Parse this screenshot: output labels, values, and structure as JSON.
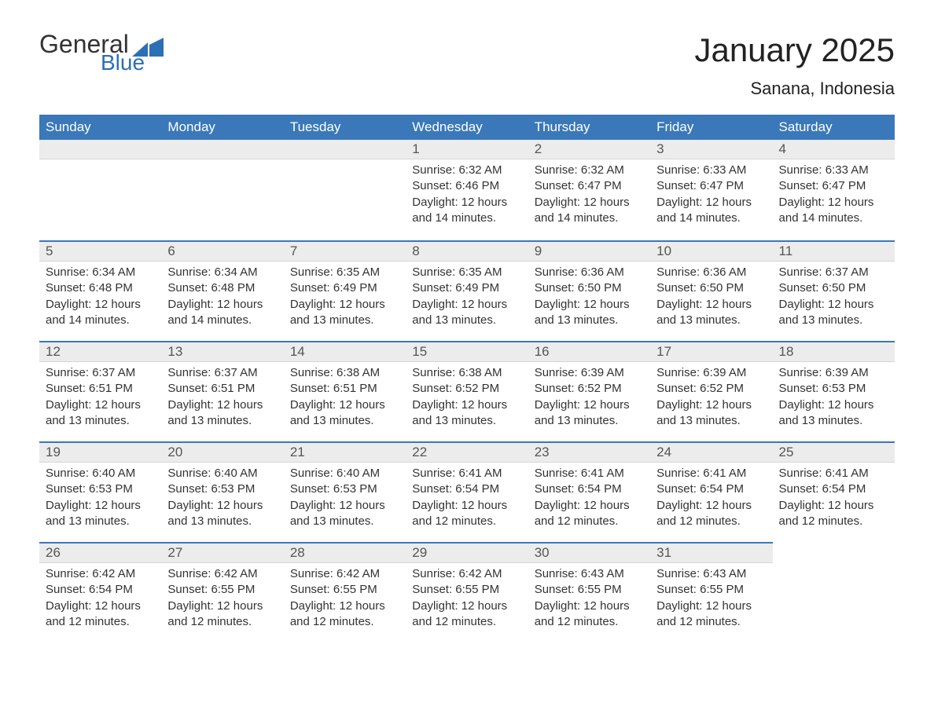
{
  "logo": {
    "word1": "General",
    "word2": "Blue",
    "word1_color": "#333333",
    "word2_color": "#2d6fb4",
    "icon_color": "#2d6fb4"
  },
  "title": "January 2025",
  "location": "Sanana, Indonesia",
  "colors": {
    "header_bg": "#3a78b9",
    "header_text": "#ffffff",
    "daynum_bg": "#ececec",
    "row_border": "#3a78b9",
    "body_text": "#333333",
    "background": "#ffffff"
  },
  "fonts": {
    "title_size_pt": 32,
    "location_size_pt": 16,
    "dayheader_size_pt": 13,
    "body_size_pt": 11
  },
  "calendar": {
    "type": "table",
    "day_headers": [
      "Sunday",
      "Monday",
      "Tuesday",
      "Wednesday",
      "Thursday",
      "Friday",
      "Saturday"
    ],
    "start_day_index": 3,
    "days": [
      {
        "n": 1,
        "sunrise": "6:32 AM",
        "sunset": "6:46 PM",
        "daylight": "12 hours and 14 minutes."
      },
      {
        "n": 2,
        "sunrise": "6:32 AM",
        "sunset": "6:47 PM",
        "daylight": "12 hours and 14 minutes."
      },
      {
        "n": 3,
        "sunrise": "6:33 AM",
        "sunset": "6:47 PM",
        "daylight": "12 hours and 14 minutes."
      },
      {
        "n": 4,
        "sunrise": "6:33 AM",
        "sunset": "6:47 PM",
        "daylight": "12 hours and 14 minutes."
      },
      {
        "n": 5,
        "sunrise": "6:34 AM",
        "sunset": "6:48 PM",
        "daylight": "12 hours and 14 minutes."
      },
      {
        "n": 6,
        "sunrise": "6:34 AM",
        "sunset": "6:48 PM",
        "daylight": "12 hours and 14 minutes."
      },
      {
        "n": 7,
        "sunrise": "6:35 AM",
        "sunset": "6:49 PM",
        "daylight": "12 hours and 13 minutes."
      },
      {
        "n": 8,
        "sunrise": "6:35 AM",
        "sunset": "6:49 PM",
        "daylight": "12 hours and 13 minutes."
      },
      {
        "n": 9,
        "sunrise": "6:36 AM",
        "sunset": "6:50 PM",
        "daylight": "12 hours and 13 minutes."
      },
      {
        "n": 10,
        "sunrise": "6:36 AM",
        "sunset": "6:50 PM",
        "daylight": "12 hours and 13 minutes."
      },
      {
        "n": 11,
        "sunrise": "6:37 AM",
        "sunset": "6:50 PM",
        "daylight": "12 hours and 13 minutes."
      },
      {
        "n": 12,
        "sunrise": "6:37 AM",
        "sunset": "6:51 PM",
        "daylight": "12 hours and 13 minutes."
      },
      {
        "n": 13,
        "sunrise": "6:37 AM",
        "sunset": "6:51 PM",
        "daylight": "12 hours and 13 minutes."
      },
      {
        "n": 14,
        "sunrise": "6:38 AM",
        "sunset": "6:51 PM",
        "daylight": "12 hours and 13 minutes."
      },
      {
        "n": 15,
        "sunrise": "6:38 AM",
        "sunset": "6:52 PM",
        "daylight": "12 hours and 13 minutes."
      },
      {
        "n": 16,
        "sunrise": "6:39 AM",
        "sunset": "6:52 PM",
        "daylight": "12 hours and 13 minutes."
      },
      {
        "n": 17,
        "sunrise": "6:39 AM",
        "sunset": "6:52 PM",
        "daylight": "12 hours and 13 minutes."
      },
      {
        "n": 18,
        "sunrise": "6:39 AM",
        "sunset": "6:53 PM",
        "daylight": "12 hours and 13 minutes."
      },
      {
        "n": 19,
        "sunrise": "6:40 AM",
        "sunset": "6:53 PM",
        "daylight": "12 hours and 13 minutes."
      },
      {
        "n": 20,
        "sunrise": "6:40 AM",
        "sunset": "6:53 PM",
        "daylight": "12 hours and 13 minutes."
      },
      {
        "n": 21,
        "sunrise": "6:40 AM",
        "sunset": "6:53 PM",
        "daylight": "12 hours and 13 minutes."
      },
      {
        "n": 22,
        "sunrise": "6:41 AM",
        "sunset": "6:54 PM",
        "daylight": "12 hours and 12 minutes."
      },
      {
        "n": 23,
        "sunrise": "6:41 AM",
        "sunset": "6:54 PM",
        "daylight": "12 hours and 12 minutes."
      },
      {
        "n": 24,
        "sunrise": "6:41 AM",
        "sunset": "6:54 PM",
        "daylight": "12 hours and 12 minutes."
      },
      {
        "n": 25,
        "sunrise": "6:41 AM",
        "sunset": "6:54 PM",
        "daylight": "12 hours and 12 minutes."
      },
      {
        "n": 26,
        "sunrise": "6:42 AM",
        "sunset": "6:54 PM",
        "daylight": "12 hours and 12 minutes."
      },
      {
        "n": 27,
        "sunrise": "6:42 AM",
        "sunset": "6:55 PM",
        "daylight": "12 hours and 12 minutes."
      },
      {
        "n": 28,
        "sunrise": "6:42 AM",
        "sunset": "6:55 PM",
        "daylight": "12 hours and 12 minutes."
      },
      {
        "n": 29,
        "sunrise": "6:42 AM",
        "sunset": "6:55 PM",
        "daylight": "12 hours and 12 minutes."
      },
      {
        "n": 30,
        "sunrise": "6:43 AM",
        "sunset": "6:55 PM",
        "daylight": "12 hours and 12 minutes."
      },
      {
        "n": 31,
        "sunrise": "6:43 AM",
        "sunset": "6:55 PM",
        "daylight": "12 hours and 12 minutes."
      }
    ],
    "labels": {
      "sunrise_prefix": "Sunrise: ",
      "sunset_prefix": "Sunset: ",
      "daylight_prefix": "Daylight: "
    }
  }
}
